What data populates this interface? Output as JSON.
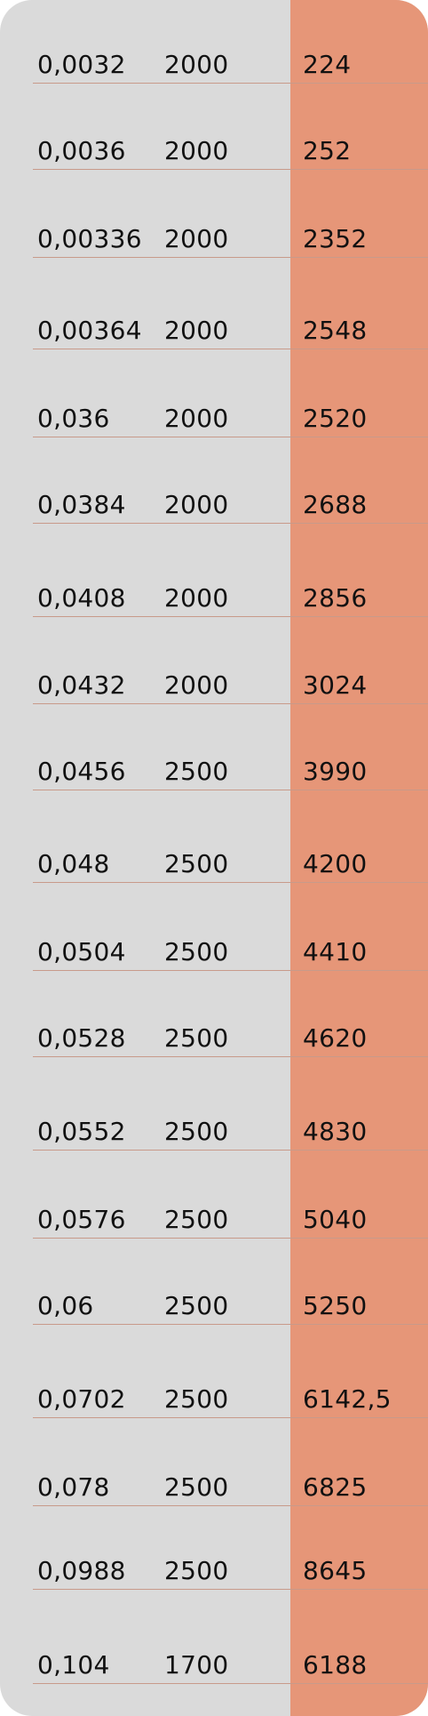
{
  "table": {
    "rows": [
      [
        "0,0032",
        "2000",
        "224"
      ],
      [
        "0,0036",
        "2000",
        "252"
      ],
      [
        "0,00336",
        "2000",
        "2352"
      ],
      [
        "0,00364",
        "2000",
        "2548"
      ],
      [
        "0,036",
        "2000",
        "2520"
      ],
      [
        "0,0384",
        "2000",
        "2688"
      ],
      [
        "0,0408",
        "2000",
        "2856"
      ],
      [
        "0,0432",
        "2000",
        "3024"
      ],
      [
        "0,0456",
        "2500",
        "3990"
      ],
      [
        "0,048",
        "2500",
        "4200"
      ],
      [
        "0,0504",
        "2500",
        "4410"
      ],
      [
        "0,0528",
        "2500",
        "4620"
      ],
      [
        "0,0552",
        "2500",
        "4830"
      ],
      [
        "0,0576",
        "2500",
        "5040"
      ],
      [
        "0,06",
        "2500",
        "5250"
      ],
      [
        "0,0702",
        "2500",
        "6142,5"
      ],
      [
        "0,078",
        "2500",
        "6825"
      ],
      [
        "0,0988",
        "2500",
        "8645"
      ],
      [
        "0,104",
        "1700",
        "6188"
      ]
    ]
  },
  "colors": {
    "panel_background": "#dadada",
    "accent_column": "#e69678",
    "row_divider": "#c89a8a",
    "text": "#111111"
  }
}
